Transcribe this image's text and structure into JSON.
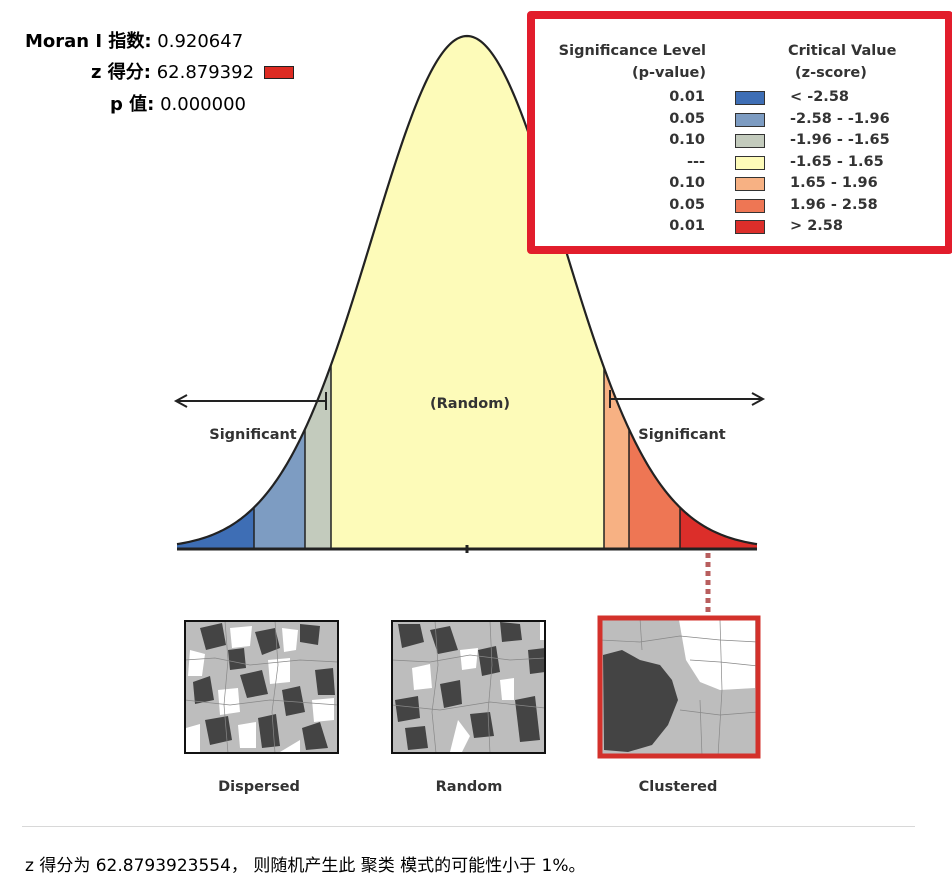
{
  "stats": {
    "moran_label": "Moran I 指数:",
    "moran_value": "0.920647",
    "z_label": "z 得分:",
    "z_value": "62.879392",
    "z_color": "#dd2b22",
    "p_label": "p 值:",
    "p_value": "0.000000"
  },
  "legend": {
    "header_significance": "Significance Level",
    "header_pvalue": "(p-value)",
    "header_critical": "Critical Value",
    "header_zscore": "(z-score)",
    "rows": [
      {
        "p": "0.01",
        "z": "< -2.58",
        "color": "#3e6eb5"
      },
      {
        "p": "0.05",
        "z": "-2.58 - -1.96",
        "color": "#7d9cc2"
      },
      {
        "p": "0.10",
        "z": "-1.96 - -1.65",
        "color": "#c3cbbd"
      },
      {
        "p": "---",
        "z": "-1.65 - 1.65",
        "color": "#fdfbb9"
      },
      {
        "p": "0.10",
        "z": "1.65 - 1.96",
        "color": "#f7b183"
      },
      {
        "p": "0.05",
        "z": "1.96 - 2.58",
        "color": "#ee7654"
      },
      {
        "p": "0.01",
        "z": "> 2.58",
        "color": "#dc2e2a"
      }
    ]
  },
  "curve": {
    "random_label": "(Random)",
    "significant_left": "Significant",
    "significant_right": "Significant"
  },
  "patterns": {
    "dispersed": "Dispersed",
    "random": "Random",
    "clustered": "Clustered",
    "highlight_color": "#d3312b"
  },
  "conclusion": "z 得分为 62.8793923554， 则随机产生此 聚类 模式的可能性小于 1%。"
}
